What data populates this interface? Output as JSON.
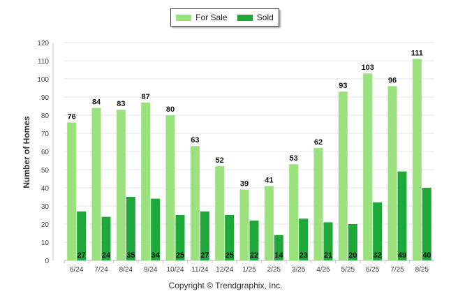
{
  "chart_data": {
    "type": "bar",
    "ylabel": "Number of Homes",
    "xlabel": "",
    "ylim": [
      0,
      120
    ],
    "yticks": [
      0,
      10,
      20,
      30,
      40,
      50,
      60,
      70,
      80,
      90,
      100,
      110,
      120
    ],
    "grid": true,
    "legend_position": "top-center",
    "categories": [
      "6/24",
      "7/24",
      "8/24",
      "9/24",
      "10/24",
      "11/24",
      "12/24",
      "1/25",
      "2/25",
      "3/25",
      "4/25",
      "5/25",
      "6/25",
      "7/25",
      "8/25"
    ],
    "series": [
      {
        "name": "For Sale",
        "color": "#9be27f",
        "values": [
          76,
          84,
          83,
          87,
          80,
          63,
          52,
          39,
          41,
          53,
          62,
          93,
          103,
          96,
          111
        ]
      },
      {
        "name": "Sold",
        "color": "#1ea83a",
        "values": [
          27,
          24,
          35,
          34,
          25,
          27,
          25,
          22,
          14,
          23,
          21,
          20,
          32,
          49,
          40
        ]
      }
    ]
  },
  "footer": {
    "credit": "Copyright © Trendgraphix, Inc."
  }
}
